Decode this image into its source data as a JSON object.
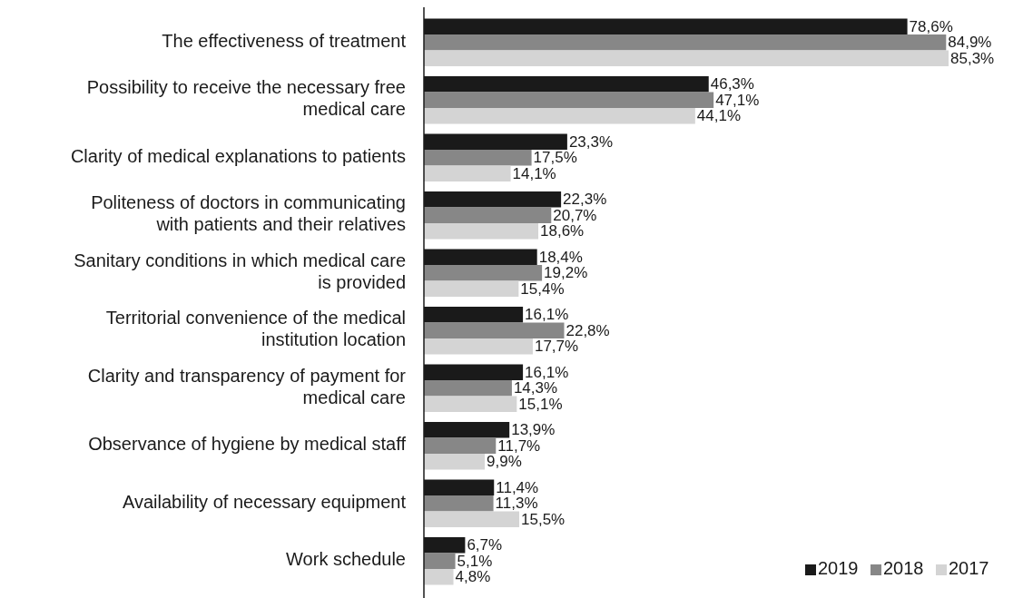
{
  "chart_data": {
    "type": "bar",
    "orientation": "horizontal",
    "categories": [
      "The effectiveness of treatment",
      "Possibility to receive the necessary free medical care",
      "Clarity of medical explanations to patients",
      "Politeness of doctors in communicating with patients and their relatives",
      "Sanitary conditions in which medical care is provided",
      "Territorial convenience of the medical institution location",
      "Clarity and transparency of payment for medical care",
      "Observance of hygiene by medical staff",
      "Availability of necessary equipment",
      "Work schedule"
    ],
    "series": [
      {
        "name": "2019",
        "color": "#1a1a1a",
        "values": [
          78.6,
          46.3,
          23.3,
          22.3,
          18.4,
          16.1,
          16.1,
          13.9,
          11.4,
          6.7
        ],
        "value_labels": [
          "78,6%",
          "46,3%",
          "23,3%",
          "22,3%",
          "18,4%",
          "16,1%",
          "16,1%",
          "13,9%",
          "11,4%",
          "6,7%"
        ]
      },
      {
        "name": "2018",
        "color": "#878787",
        "values": [
          84.9,
          47.1,
          17.5,
          20.7,
          19.2,
          22.8,
          14.3,
          11.7,
          11.3,
          5.1
        ],
        "value_labels": [
          "84,9%",
          "47,1%",
          "17,5%",
          "20,7%",
          "19,2%",
          "22,8%",
          "14,3%",
          "11,7%",
          "11,3%",
          "5,1%"
        ]
      },
      {
        "name": "2017",
        "color": "#d4d4d4",
        "values": [
          85.3,
          44.1,
          14.1,
          18.6,
          15.4,
          17.7,
          15.1,
          9.9,
          15.5,
          4.8
        ],
        "value_labels": [
          "85,3%",
          "44,1%",
          "14,1%",
          "18,6%",
          "15,4%",
          "17,7%",
          "15,1%",
          "9,9%",
          "15,5%",
          "4,8%"
        ]
      }
    ],
    "legend": "bottom right"
  }
}
